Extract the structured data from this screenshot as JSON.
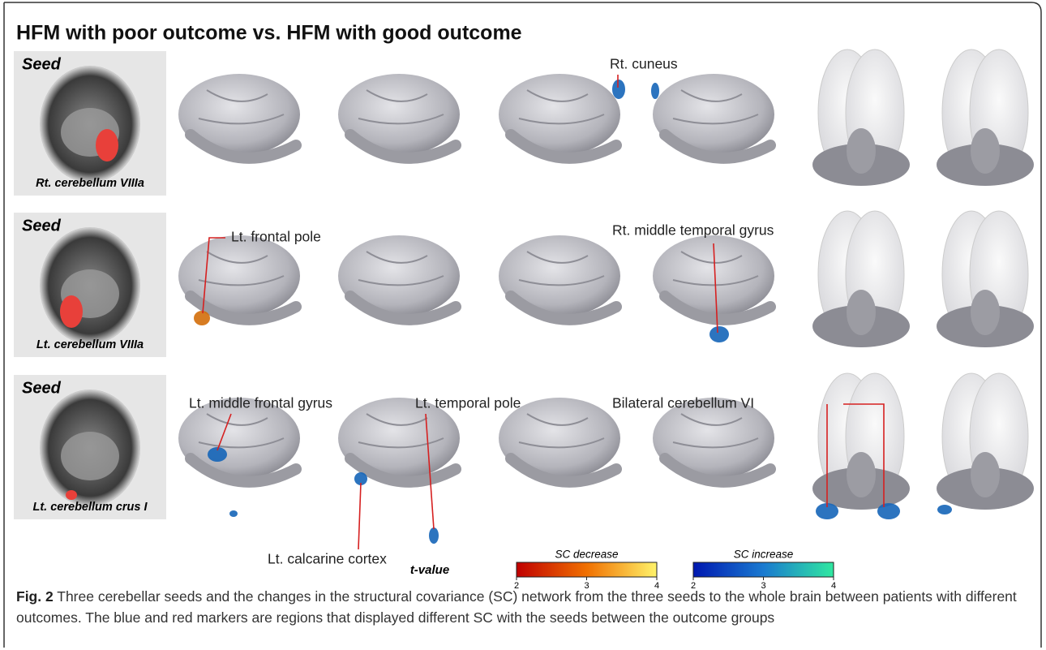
{
  "title": "HFM with poor outcome vs. HFM with good outcome",
  "rows": [
    {
      "seed_label": "Seed",
      "region": "Rt. cerebellum VIIIa",
      "annotations": [
        "Rt. cuneus"
      ]
    },
    {
      "seed_label": "Seed",
      "region": "Lt. cerebellum VIIIa",
      "annotations": [
        "Lt. frontal pole",
        "Rt. middle temporal gyrus"
      ]
    },
    {
      "seed_label": "Seed",
      "region": "Lt. cerebellum crus I",
      "annotations": [
        "Lt. middle frontal gyrus",
        "Lt. temporal pole",
        "Lt. calcarine cortex",
        "Bilateral cerebellum VI"
      ]
    }
  ],
  "legend": {
    "axis_label": "t-value",
    "scales": [
      {
        "label": "SC decrease",
        "ticks": [
          2,
          3,
          4
        ]
      },
      {
        "label": "SC increase",
        "ticks": [
          2,
          3,
          4
        ]
      }
    ]
  },
  "caption": {
    "label": "Fig. 2",
    "text": "Three cerebellar seeds and the changes in the structural covariance (SC) network from the three seeds to the whole brain between patients with different outcomes. The blue and red markers are regions that displayed different SC with the seeds between the outcome groups"
  }
}
